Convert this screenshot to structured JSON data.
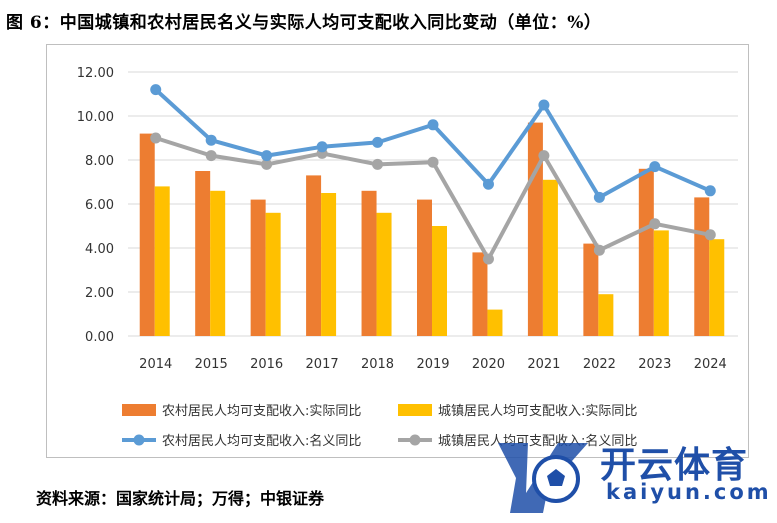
{
  "figure_title": "图 6：中国城镇和农村居民名义与实际人均可支配收入同比变动（单位：%）",
  "source_text": "资料来源：国家统计局；万得；中银证券",
  "watermark": {
    "text": "开云体育",
    "sub": "kaiyun.com"
  },
  "colors": {
    "rural_real": "#ed7d31",
    "urban_real": "#ffc000",
    "rural_nominal": "#5b9bd5",
    "urban_nominal": "#a5a5a5",
    "grid": "#d9d9d9",
    "brand": "#1f4fa8"
  },
  "chart_data": {
    "type": "bar+line",
    "title": "",
    "xlabel": "",
    "ylabel": "",
    "categories": [
      "2014",
      "2015",
      "2016",
      "2017",
      "2018",
      "2019",
      "2020",
      "2021",
      "2022",
      "2023",
      "2024"
    ],
    "ylim": [
      0,
      12
    ],
    "yticks": [
      "0.00",
      "2.00",
      "4.00",
      "6.00",
      "8.00",
      "10.00",
      "12.00"
    ],
    "grid": true,
    "legend_position": "bottom",
    "series": [
      {
        "name": "农村居民人均可支配收入:实际同比",
        "kind": "bar",
        "values": [
          9.2,
          7.5,
          6.2,
          7.3,
          6.6,
          6.2,
          3.8,
          9.7,
          4.2,
          7.6,
          6.3
        ]
      },
      {
        "name": "城镇居民人均可支配收入:实际同比",
        "kind": "bar",
        "values": [
          6.8,
          6.6,
          5.6,
          6.5,
          5.6,
          5.0,
          1.2,
          7.1,
          1.9,
          4.8,
          4.4
        ]
      },
      {
        "name": "农村居民人均可支配收入:名义同比",
        "kind": "line",
        "values": [
          11.2,
          8.9,
          8.2,
          8.6,
          8.8,
          9.6,
          6.9,
          10.5,
          6.3,
          7.7,
          6.6
        ]
      },
      {
        "name": "城镇居民人均可支配收入:名义同比",
        "kind": "line",
        "values": [
          9.0,
          8.2,
          7.8,
          8.3,
          7.8,
          7.9,
          3.5,
          8.2,
          3.9,
          5.1,
          4.6
        ]
      }
    ]
  }
}
